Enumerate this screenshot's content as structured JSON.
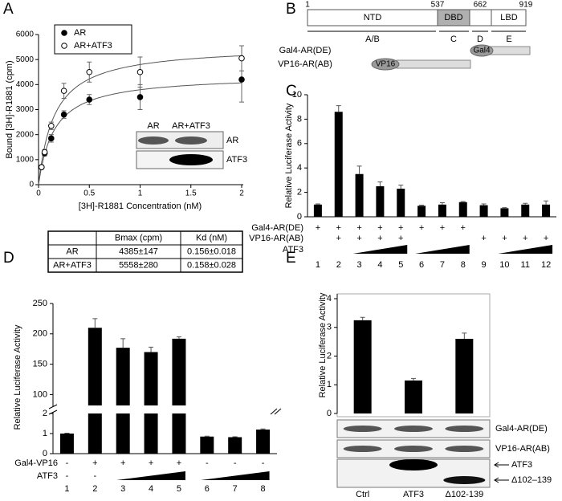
{
  "panels": [
    "A",
    "B",
    "C",
    "D",
    "E"
  ],
  "diagram": {
    "positions": [
      "1",
      "537",
      "662",
      "919"
    ],
    "domains": [
      "NTD",
      "DBD",
      "LBD"
    ],
    "regions": [
      "A/B",
      "C",
      "D",
      "E"
    ],
    "constructs": [
      {
        "name": "Gal4-AR(DE)",
        "tag": "Gal4"
      },
      {
        "name": "VP16-AR(AB)",
        "tag": "VP16"
      }
    ]
  },
  "chart_data": [
    {
      "type": "scatter",
      "xlabel": "[3H]-R1881 Concentration (nM)",
      "ylabel": "Bound [3H]-R1881 (cpm)",
      "x": [
        0.03,
        0.06,
        0.125,
        0.25,
        0.5,
        1,
        2
      ],
      "series": [
        {
          "name": "AR",
          "color": "#000000",
          "marker": "filled",
          "values": [
            700,
            1250,
            1850,
            2800,
            3400,
            3500,
            4200
          ],
          "errors": [
            50,
            100,
            150,
            150,
            200,
            500,
            900
          ],
          "fit": {
            "bmax": 4385,
            "kd": 0.156
          }
        },
        {
          "name": "AR+ATF3",
          "color": "#000000",
          "marker": "open",
          "values": [
            700,
            1300,
            2350,
            3750,
            4500,
            4500,
            5050
          ],
          "errors": [
            50,
            100,
            150,
            300,
            400,
            600,
            500
          ],
          "fit": {
            "bmax": 5558,
            "kd": 0.158
          }
        }
      ],
      "xlim": [
        0,
        2
      ],
      "xticks": [
        0,
        0.5,
        1,
        1.5,
        2
      ],
      "ylim": [
        0,
        6000
      ],
      "yticks": [
        0,
        1000,
        2000,
        3000,
        4000,
        5000,
        6000
      ],
      "legend": "upper left",
      "blot": {
        "lanes": [
          "AR",
          "AR+ATF3"
        ],
        "bands": [
          "AR",
          "ATF3"
        ]
      },
      "table": {
        "header": [
          "Bmax (cpm)",
          "Kd (nM)"
        ],
        "rows": [
          [
            "AR",
            "4385±147",
            "0.156±0.018"
          ],
          [
            "AR+ATF3",
            "5558±280",
            "0.158±0.028"
          ]
        ]
      }
    },
    {
      "type": "bar",
      "ylabel": "Relative Luciferase Activity",
      "color": "#000000",
      "categories": [
        "1",
        "2",
        "3",
        "4",
        "5",
        "6",
        "7",
        "8",
        "9",
        "10",
        "11",
        "12"
      ],
      "values": [
        1,
        8.6,
        3.5,
        2.5,
        2.3,
        0.9,
        1.0,
        1.2,
        0.95,
        0.7,
        1.0,
        1.0
      ],
      "errors": [
        0.05,
        0.5,
        0.65,
        0.35,
        0.3,
        0.05,
        0.15,
        0.05,
        0.1,
        0.05,
        0.1,
        0.3
      ],
      "ylim": [
        0,
        10
      ],
      "yticks": [
        0,
        2,
        4,
        6,
        8,
        10
      ],
      "conditions": [
        {
          "name": "Gal4-AR(DE)",
          "marks": [
            "+",
            "+",
            "+",
            "+",
            "+",
            "+",
            "+",
            "+",
            null,
            null,
            null,
            null
          ]
        },
        {
          "name": "VP16-AR(AB)",
          "marks": [
            null,
            "+",
            "+",
            "+",
            "+",
            null,
            null,
            null,
            "+",
            "+",
            "+",
            "+"
          ]
        },
        {
          "name": "ATF3"
        }
      ]
    },
    {
      "type": "bar",
      "ylabel": "Relative Luciferase Activity",
      "color": "#000000",
      "categories": [
        "1",
        "2",
        "3",
        "4",
        "5",
        "6",
        "7",
        "8"
      ],
      "values": [
        1,
        210,
        177,
        170,
        192,
        0.85,
        0.82,
        1.2
      ],
      "errors": [
        0.02,
        15,
        15,
        8,
        3,
        0.02,
        0.02,
        0.03
      ],
      "ylim": [
        0,
        250
      ],
      "ybreak": [
        2,
        82
      ],
      "yticks": [
        0,
        1,
        2,
        100,
        150,
        200,
        250
      ],
      "conditions": [
        {
          "name": "Gal4-VP16",
          "marks": [
            "-",
            "+",
            "+",
            "+",
            "+",
            "-",
            "-",
            "-"
          ]
        },
        {
          "name": "ATF3",
          "marks": [
            "-",
            "-",
            null,
            null,
            null,
            null,
            null,
            null
          ]
        }
      ]
    },
    {
      "type": "bar",
      "ylabel": "Relative Luciferase Activity",
      "color": "#000000",
      "categories": [
        "Ctrl",
        "ATF3",
        "Δ102-139"
      ],
      "values": [
        3.25,
        1.15,
        2.6
      ],
      "errors": [
        0.1,
        0.07,
        0.2
      ],
      "ylim": [
        0,
        4
      ],
      "yticks": [
        0,
        1,
        2,
        3,
        4
      ],
      "blot": {
        "rows": [
          "Gal4-AR(DE)",
          "VP16-AR(AB)"
        ],
        "arrows": [
          "ATF3",
          "Δ102–139"
        ]
      }
    }
  ]
}
